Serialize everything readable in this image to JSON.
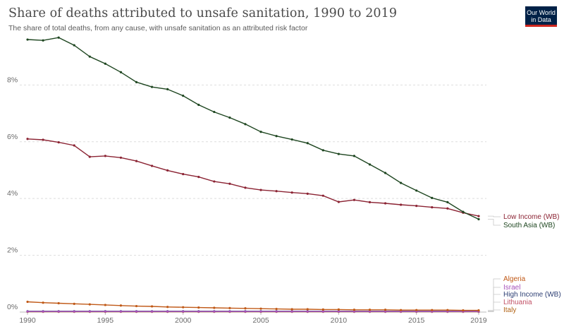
{
  "header": {
    "title": "Share of deaths attributed to unsafe sanitation, 1990 to 2019",
    "subtitle": "The share of total deaths, from any cause, with unsafe sanitation as an attributed risk factor",
    "logo_line1": "Our World",
    "logo_line2": "in Data",
    "logo_color": "#002147",
    "logo_accent": "#ce261e"
  },
  "chart_data": {
    "type": "line",
    "x": [
      1990,
      1991,
      1992,
      1993,
      1994,
      1995,
      1996,
      1997,
      1998,
      1999,
      2000,
      2001,
      2002,
      2003,
      2004,
      2005,
      2006,
      2007,
      2008,
      2009,
      2010,
      2011,
      2012,
      2013,
      2014,
      2015,
      2016,
      2017,
      2018,
      2019
    ],
    "xlim": [
      1989.5,
      2019.5
    ],
    "ylim": [
      0,
      9.8
    ],
    "x_ticks": [
      1990,
      1995,
      2000,
      2005,
      2010,
      2015,
      2019
    ],
    "x_tick_labels": [
      "1990",
      "1995",
      "2000",
      "2005",
      "2010",
      "2015",
      "2019"
    ],
    "y_ticks": [
      0,
      2,
      4,
      6,
      8
    ],
    "y_tick_labels": [
      "0%",
      "2%",
      "4%",
      "6%",
      "8%"
    ],
    "grid": true,
    "legend_placement": "right, labels at line ends",
    "series": [
      {
        "name": "South Asia (WB)",
        "color": "#1e4620",
        "values": [
          9.6,
          9.57,
          9.67,
          9.4,
          9.0,
          8.75,
          8.45,
          8.1,
          7.93,
          7.85,
          7.62,
          7.3,
          7.05,
          6.85,
          6.62,
          6.35,
          6.2,
          6.08,
          5.95,
          5.7,
          5.57,
          5.5,
          5.2,
          4.9,
          4.55,
          4.28,
          4.02,
          3.87,
          3.53,
          3.27
        ]
      },
      {
        "name": "Low Income (WB)",
        "color": "#8b2333",
        "values": [
          6.1,
          6.07,
          5.98,
          5.87,
          5.47,
          5.5,
          5.44,
          5.32,
          5.15,
          4.99,
          4.86,
          4.76,
          4.6,
          4.52,
          4.38,
          4.3,
          4.26,
          4.21,
          4.17,
          4.1,
          3.88,
          3.95,
          3.87,
          3.83,
          3.78,
          3.74,
          3.69,
          3.65,
          3.5,
          3.38
        ]
      },
      {
        "name": "Algeria",
        "color": "#c05917",
        "values": [
          0.36,
          0.33,
          0.31,
          0.29,
          0.27,
          0.25,
          0.23,
          0.21,
          0.2,
          0.18,
          0.17,
          0.16,
          0.15,
          0.14,
          0.13,
          0.12,
          0.11,
          0.1,
          0.1,
          0.09,
          0.09,
          0.08,
          0.08,
          0.08,
          0.07,
          0.07,
          0.07,
          0.07,
          0.06,
          0.06
        ]
      },
      {
        "name": "Israel",
        "color": "#a652ba",
        "values": [
          0.02,
          0.02,
          0.02,
          0.02,
          0.02,
          0.02,
          0.02,
          0.02,
          0.02,
          0.02,
          0.02,
          0.02,
          0.02,
          0.02,
          0.02,
          0.02,
          0.02,
          0.02,
          0.02,
          0.02,
          0.02,
          0.02,
          0.02,
          0.02,
          0.02,
          0.02,
          0.02,
          0.02,
          0.02,
          0.02
        ]
      },
      {
        "name": "High Income (WB)",
        "color": "#2c3e73",
        "values": [
          0.03,
          0.03,
          0.03,
          0.03,
          0.03,
          0.03,
          0.03,
          0.03,
          0.03,
          0.03,
          0.03,
          0.03,
          0.03,
          0.03,
          0.03,
          0.03,
          0.03,
          0.03,
          0.03,
          0.03,
          0.03,
          0.03,
          0.03,
          0.03,
          0.03,
          0.03,
          0.03,
          0.03,
          0.03,
          0.03
        ]
      },
      {
        "name": "Lithuania",
        "color": "#c15065",
        "values": [
          0.02,
          0.02,
          0.02,
          0.02,
          0.02,
          0.02,
          0.02,
          0.02,
          0.02,
          0.02,
          0.02,
          0.02,
          0.02,
          0.02,
          0.02,
          0.02,
          0.02,
          0.02,
          0.02,
          0.02,
          0.02,
          0.02,
          0.02,
          0.02,
          0.02,
          0.02,
          0.02,
          0.02,
          0.02,
          0.02
        ]
      },
      {
        "name": "Italy",
        "color": "#b16214",
        "values": [
          0.01,
          0.01,
          0.01,
          0.01,
          0.01,
          0.01,
          0.01,
          0.01,
          0.01,
          0.01,
          0.01,
          0.01,
          0.01,
          0.01,
          0.01,
          0.01,
          0.01,
          0.01,
          0.01,
          0.01,
          0.01,
          0.01,
          0.01,
          0.01,
          0.01,
          0.01,
          0.01,
          0.01,
          0.01,
          0.01
        ]
      }
    ]
  }
}
